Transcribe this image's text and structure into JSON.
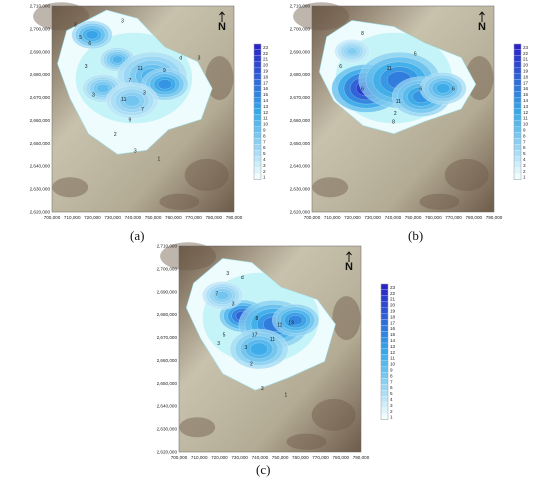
{
  "y_ticks": [
    "2,710,000",
    "2,700,000",
    "2,690,000",
    "2,680,000",
    "2,670,000",
    "2,660,000",
    "2,650,000",
    "2,640,000",
    "2,630,000",
    "2,620,000"
  ],
  "x_ticks": [
    "700,000",
    "710,000",
    "720,000",
    "730,000",
    "740,000",
    "750,000",
    "760,000",
    "770,000",
    "780,000",
    "790,000"
  ],
  "colorbar_values": [
    "23",
    "22",
    "21",
    "20",
    "19",
    "18",
    "17",
    "16",
    "15",
    "14",
    "13",
    "12",
    "11",
    "10",
    "9",
    "8",
    "7",
    "6",
    "5",
    "4",
    "3",
    "2",
    "1"
  ],
  "north_arrow_letter": "N",
  "colors": {
    "max": "#2a24c8",
    "mid": "#35a9e8",
    "low": "#b9f1f6",
    "min": "#effcfd",
    "terrain_light": "#c8c2ad",
    "terrain_dark": "#6e5b4a"
  },
  "panels": [
    {
      "caption": "(a)",
      "contour_labels": [
        "3",
        "5",
        "6",
        "3",
        "3",
        "11",
        "7",
        "9",
        "d",
        "3",
        "3",
        "3",
        "11",
        "7",
        "9",
        "2",
        "3",
        "1"
      ]
    },
    {
      "caption": "(b)",
      "contour_labels": [
        "8",
        "6",
        "6",
        "11",
        "6",
        "6",
        "11",
        "8",
        "2",
        "6"
      ]
    },
    {
      "caption": "(c)",
      "contour_labels": [
        "3",
        "d",
        "7",
        "3",
        "5",
        "3",
        "8",
        "11",
        "13",
        "11",
        "17",
        "3",
        "2",
        "3",
        "1"
      ]
    }
  ]
}
